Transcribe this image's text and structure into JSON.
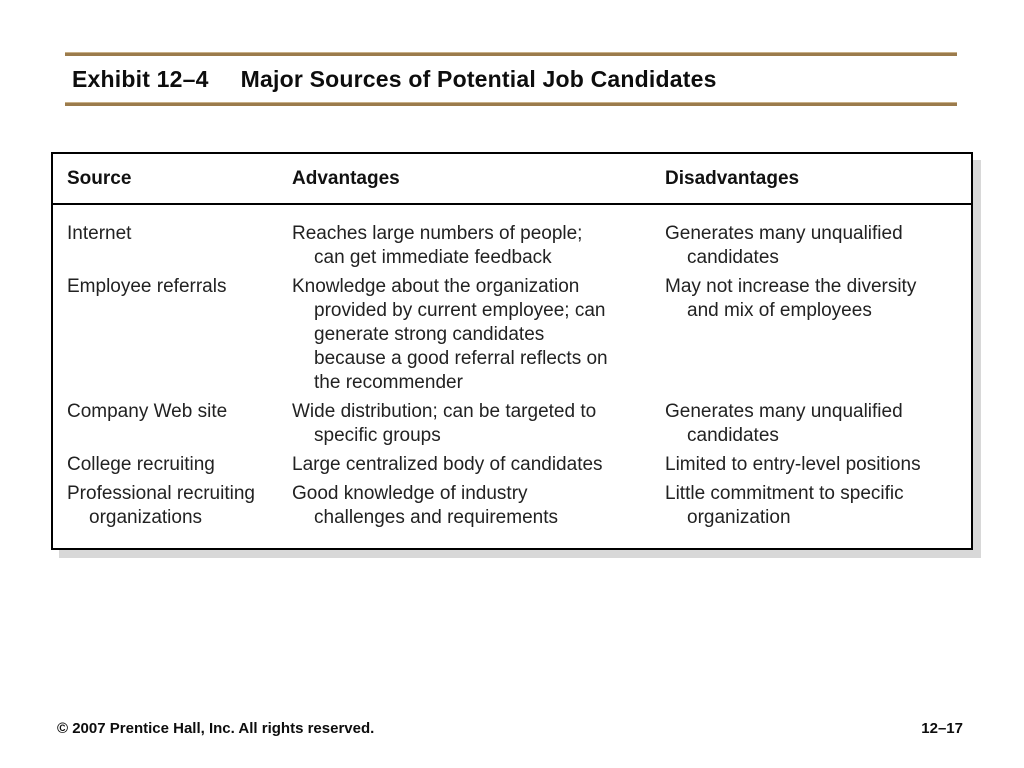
{
  "title": {
    "exhibit": "Exhibit 12–4",
    "text": "Major Sources of Potential Job Candidates"
  },
  "table": {
    "headers": [
      "Source",
      "Advantages",
      "Disadvantages"
    ],
    "rows": [
      {
        "source": "Internet",
        "advantages": "Reaches large numbers of people;\ncan get immediate feedback",
        "disadvantages": "Generates many unqualified\ncandidates"
      },
      {
        "source": "Employee referrals",
        "advantages": "Knowledge about the organization\nprovided by current employee; can\ngenerate strong candidates\nbecause a good referral reflects on\nthe recommender",
        "disadvantages": "May not increase the diversity\nand mix of employees"
      },
      {
        "source": "Company Web site",
        "advantages": "Wide distribution; can be targeted to\nspecific groups",
        "disadvantages": "Generates many unqualified\ncandidates"
      },
      {
        "source": "College recruiting",
        "advantages": "Large centralized body of candidates",
        "disadvantages": "Limited to entry-level positions"
      },
      {
        "source": "Professional recruiting\norganizations",
        "advantages": "Good knowledge of industry\nchallenges and requirements",
        "disadvantages": "Little commitment to specific\norganization"
      }
    ]
  },
  "footer": {
    "copyright": "© 2007 Prentice Hall, Inc. All rights reserved.",
    "page": "12–17"
  },
  "colors": {
    "rule": "#9b7b4c",
    "table_border": "#000000",
    "table_shadow": "#d8d8d8",
    "text": "#222222",
    "background": "#ffffff"
  }
}
